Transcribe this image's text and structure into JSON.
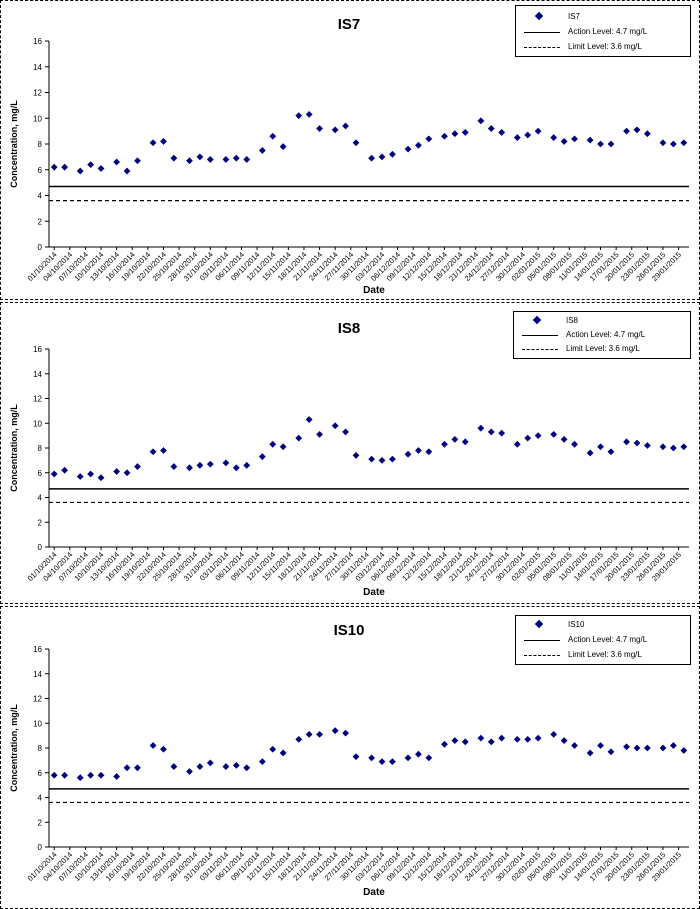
{
  "colors": {
    "marker": "#00007f",
    "line": "#000000",
    "background": "#ffffff"
  },
  "dates": [
    "01/10/2014",
    "04/10/2014",
    "07/10/2014",
    "10/10/2014",
    "13/10/2014",
    "16/10/2014",
    "19/10/2014",
    "22/10/2014",
    "25/10/2014",
    "28/10/2014",
    "31/10/2014",
    "03/11/2014",
    "06/11/2014",
    "09/11/2014",
    "12/11/2014",
    "15/11/2014",
    "18/11/2014",
    "21/11/2014",
    "24/11/2014",
    "27/11/2014",
    "30/11/2014",
    "03/12/2014",
    "06/12/2014",
    "09/12/2014",
    "12/12/2014",
    "15/12/2014",
    "18/12/2014",
    "21/12/2014",
    "24/12/2014",
    "27/12/2014",
    "30/12/2014",
    "02/01/2015",
    "05/01/2015",
    "08/01/2015",
    "11/01/2015",
    "14/01/2015",
    "17/01/2015",
    "20/01/2015",
    "23/01/2015",
    "26/01/2015",
    "29/01/2015"
  ],
  "chart_data": [
    {
      "type": "scatter",
      "title": "IS7",
      "xlabel": "Date",
      "ylabel": "Concentration, mg/L",
      "ylim": [
        0,
        16
      ],
      "yticks": [
        "0",
        "2",
        "4",
        "6",
        "8",
        "10",
        "12",
        "14",
        "16"
      ],
      "grid": false,
      "legend_position": "top-right",
      "series": [
        {
          "name": "IS7",
          "kind": "points",
          "x": [
            "01/10/2014",
            "03/10/2014",
            "06/10/2014",
            "08/10/2014",
            "10/10/2014",
            "13/10/2014",
            "15/10/2014",
            "17/10/2014",
            "20/10/2014",
            "22/10/2014",
            "24/10/2014",
            "27/10/2014",
            "29/10/2014",
            "31/10/2014",
            "03/11/2014",
            "05/11/2014",
            "07/11/2014",
            "10/11/2014",
            "12/11/2014",
            "14/11/2014",
            "17/11/2014",
            "19/11/2014",
            "21/11/2014",
            "24/11/2014",
            "26/11/2014",
            "28/11/2014",
            "01/12/2014",
            "03/12/2014",
            "05/12/2014",
            "08/12/2014",
            "10/12/2014",
            "12/12/2014",
            "15/12/2014",
            "17/12/2014",
            "19/12/2014",
            "22/12/2014",
            "24/12/2014",
            "26/12/2014",
            "29/12/2014",
            "31/12/2014",
            "02/01/2015",
            "05/01/2015",
            "07/01/2015",
            "09/01/2015",
            "12/01/2015",
            "14/01/2015",
            "16/01/2015",
            "19/01/2015",
            "21/01/2015",
            "23/01/2015",
            "26/01/2015",
            "28/01/2015",
            "30/01/2015"
          ],
          "y": [
            6.2,
            6.2,
            5.9,
            6.4,
            6.1,
            6.6,
            5.9,
            6.7,
            8.1,
            8.2,
            6.9,
            6.7,
            7.0,
            6.8,
            6.8,
            6.9,
            6.8,
            7.5,
            8.6,
            7.8,
            10.2,
            10.3,
            9.2,
            9.1,
            9.4,
            8.1,
            6.9,
            7.0,
            7.2,
            7.6,
            7.9,
            8.4,
            8.6,
            8.8,
            8.9,
            9.8,
            9.2,
            8.9,
            8.5,
            8.7,
            9.0,
            8.5,
            8.2,
            8.4,
            8.3,
            8.0,
            8.0,
            9.0,
            9.1,
            8.8,
            8.1,
            8.0,
            8.1
          ]
        },
        {
          "name": "Action Level: 4.7 mg/L",
          "kind": "solid",
          "value": 4.7
        },
        {
          "name": "Limit Level: 3.6 mg/L",
          "kind": "dash",
          "value": 3.6
        }
      ]
    },
    {
      "type": "scatter",
      "title": "IS8",
      "xlabel": "Date",
      "ylabel": "Concentration, mg/L",
      "ylim": [
        0,
        16
      ],
      "yticks": [
        "0",
        "2",
        "4",
        "6",
        "8",
        "10",
        "12",
        "14",
        "16"
      ],
      "grid": false,
      "legend_position": "top-right",
      "series": [
        {
          "name": "IS8",
          "kind": "points",
          "x": [
            "01/10/2014",
            "03/10/2014",
            "06/10/2014",
            "08/10/2014",
            "10/10/2014",
            "13/10/2014",
            "15/10/2014",
            "17/10/2014",
            "20/10/2014",
            "22/10/2014",
            "24/10/2014",
            "27/10/2014",
            "29/10/2014",
            "31/10/2014",
            "03/11/2014",
            "05/11/2014",
            "07/11/2014",
            "10/11/2014",
            "12/11/2014",
            "14/11/2014",
            "17/11/2014",
            "19/11/2014",
            "21/11/2014",
            "24/11/2014",
            "26/11/2014",
            "28/11/2014",
            "01/12/2014",
            "03/12/2014",
            "05/12/2014",
            "08/12/2014",
            "10/12/2014",
            "12/12/2014",
            "15/12/2014",
            "17/12/2014",
            "19/12/2014",
            "22/12/2014",
            "24/12/2014",
            "26/12/2014",
            "29/12/2014",
            "31/12/2014",
            "02/01/2015",
            "05/01/2015",
            "07/01/2015",
            "09/01/2015",
            "12/01/2015",
            "14/01/2015",
            "16/01/2015",
            "19/01/2015",
            "21/01/2015",
            "23/01/2015",
            "26/01/2015",
            "28/01/2015",
            "30/01/2015"
          ],
          "y": [
            5.9,
            6.2,
            5.7,
            5.9,
            5.6,
            6.1,
            6.0,
            6.5,
            7.7,
            7.8,
            6.5,
            6.4,
            6.6,
            6.7,
            6.8,
            6.4,
            6.6,
            7.3,
            8.3,
            8.1,
            8.8,
            10.3,
            9.1,
            9.8,
            9.3,
            7.4,
            7.1,
            7.0,
            7.1,
            7.5,
            7.8,
            7.7,
            8.3,
            8.7,
            8.5,
            9.6,
            9.3,
            9.2,
            8.3,
            8.8,
            9.0,
            9.1,
            8.7,
            8.3,
            7.6,
            8.1,
            7.7,
            8.5,
            8.4,
            8.2,
            8.1,
            8.0,
            8.1
          ]
        },
        {
          "name": "Action Level: 4.7 mg/L",
          "kind": "solid",
          "value": 4.7
        },
        {
          "name": "Limit Level: 3.6 mg/L",
          "kind": "dash",
          "value": 3.6
        }
      ]
    },
    {
      "type": "scatter",
      "title": "IS10",
      "xlabel": "Date",
      "ylabel": "Concentration, mg/L",
      "ylim": [
        0,
        16
      ],
      "yticks": [
        "0",
        "2",
        "4",
        "6",
        "8",
        "10",
        "12",
        "14",
        "16"
      ],
      "grid": false,
      "legend_position": "top-right",
      "series": [
        {
          "name": "IS10",
          "kind": "points",
          "x": [
            "01/10/2014",
            "03/10/2014",
            "06/10/2014",
            "08/10/2014",
            "10/10/2014",
            "13/10/2014",
            "15/10/2014",
            "17/10/2014",
            "20/10/2014",
            "22/10/2014",
            "24/10/2014",
            "27/10/2014",
            "29/10/2014",
            "31/10/2014",
            "03/11/2014",
            "05/11/2014",
            "07/11/2014",
            "10/11/2014",
            "12/11/2014",
            "14/11/2014",
            "17/11/2014",
            "19/11/2014",
            "21/11/2014",
            "24/11/2014",
            "26/11/2014",
            "28/11/2014",
            "01/12/2014",
            "03/12/2014",
            "05/12/2014",
            "08/12/2014",
            "10/12/2014",
            "12/12/2014",
            "15/12/2014",
            "17/12/2014",
            "19/12/2014",
            "22/12/2014",
            "24/12/2014",
            "26/12/2014",
            "29/12/2014",
            "31/12/2014",
            "02/01/2015",
            "05/01/2015",
            "07/01/2015",
            "09/01/2015",
            "12/01/2015",
            "14/01/2015",
            "16/01/2015",
            "19/01/2015",
            "21/01/2015",
            "23/01/2015",
            "26/01/2015",
            "28/01/2015",
            "30/01/2015"
          ],
          "y": [
            5.8,
            5.8,
            5.6,
            5.8,
            5.8,
            5.7,
            6.4,
            6.4,
            8.2,
            7.9,
            6.5,
            6.1,
            6.5,
            6.8,
            6.5,
            6.6,
            6.4,
            6.9,
            7.9,
            7.6,
            8.7,
            9.1,
            9.1,
            9.4,
            9.2,
            7.3,
            7.2,
            6.9,
            6.9,
            7.2,
            7.5,
            7.2,
            8.3,
            8.6,
            8.5,
            8.8,
            8.5,
            8.8,
            8.7,
            8.7,
            8.8,
            9.1,
            8.6,
            8.2,
            7.6,
            8.2,
            7.7,
            8.1,
            8.0,
            8.0,
            8.0,
            8.2,
            7.8
          ]
        },
        {
          "name": "Action Level: 4.7 mg/L",
          "kind": "solid",
          "value": 4.7
        },
        {
          "name": "Limit Level: 3.6 mg/L",
          "kind": "dash",
          "value": 3.6
        }
      ]
    }
  ]
}
